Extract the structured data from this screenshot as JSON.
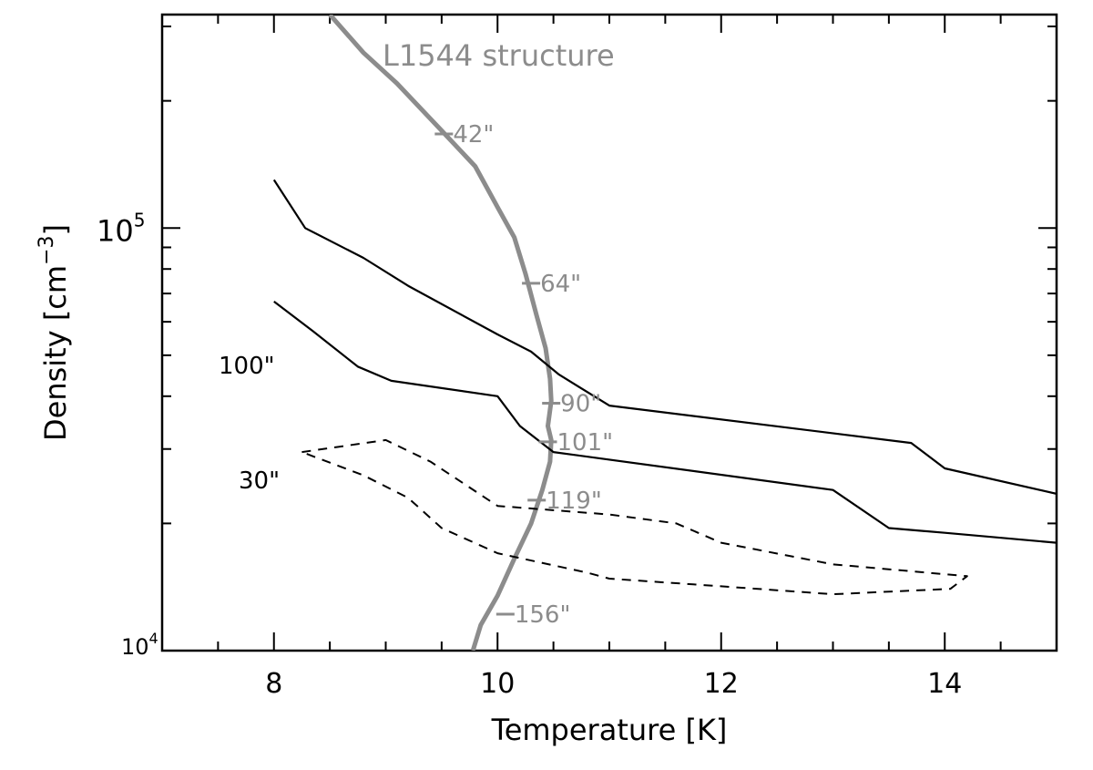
{
  "chart_data": {
    "type": "line",
    "title": "L1544 structure",
    "xlabel": "Temperature [K]",
    "ylabel_main": "Density",
    "ylabel_unit_base": "[cm",
    "ylabel_unit_exp": "−3",
    "ylabel_unit_close": "]",
    "xlim": [
      7,
      15
    ],
    "ylim": [
      10000,
      320000
    ],
    "yscale": "log",
    "xticks": [
      8,
      10,
      12,
      14
    ],
    "xtick_labels": [
      "8",
      "10",
      "12",
      "14"
    ],
    "ytick_labels": [
      {
        "value": 100000,
        "base": "10",
        "exp": "5"
      },
      {
        "value": 10000,
        "base": "10",
        "exp": "4"
      }
    ],
    "colors": {
      "structure": "#8c8c8c",
      "contours": "#000000"
    },
    "series": [
      {
        "style": "gray-thick",
        "points": [
          [
            8.5,
            320000
          ],
          [
            8.8,
            260000
          ],
          [
            9.1,
            220000
          ],
          [
            9.5,
            170000
          ],
          [
            9.8,
            140000
          ],
          [
            10.0,
            112000
          ],
          [
            10.15,
            95000
          ],
          [
            10.25,
            78000
          ],
          [
            10.35,
            62000
          ],
          [
            10.43,
            52000
          ],
          [
            10.47,
            44000
          ],
          [
            10.48,
            39000
          ],
          [
            10.45,
            34000
          ],
          [
            10.48,
            31500
          ],
          [
            10.47,
            28000
          ],
          [
            10.4,
            24000
          ],
          [
            10.3,
            20000
          ],
          [
            10.15,
            16500
          ],
          [
            10.0,
            13500
          ],
          [
            9.85,
            11500
          ],
          [
            9.78,
            10000
          ]
        ]
      },
      {
        "style": "solid",
        "label": "100\"",
        "points": [
          [
            8.0,
            130000
          ],
          [
            8.28,
            100000
          ],
          [
            8.8,
            85000
          ],
          [
            9.2,
            73000
          ],
          [
            10.0,
            56000
          ],
          [
            10.3,
            51000
          ],
          [
            10.55,
            45000
          ],
          [
            11.0,
            38000
          ],
          [
            13.7,
            31000
          ],
          [
            14.0,
            27000
          ],
          [
            15.0,
            23500
          ]
        ]
      },
      {
        "style": "solid",
        "points": [
          [
            8.0,
            67000
          ],
          [
            8.35,
            57000
          ],
          [
            8.75,
            47000
          ],
          [
            9.05,
            43500
          ],
          [
            10.0,
            40000
          ],
          [
            10.2,
            34000
          ],
          [
            10.5,
            29500
          ],
          [
            13.0,
            24000
          ],
          [
            13.5,
            19500
          ],
          [
            14.0,
            19000
          ],
          [
            15.0,
            18000
          ]
        ]
      },
      {
        "style": "dashed",
        "label": "30\"",
        "points": [
          [
            8.25,
            29500
          ],
          [
            9.0,
            31500
          ],
          [
            9.4,
            28000
          ],
          [
            10.0,
            22000
          ],
          [
            11.0,
            21000
          ],
          [
            11.6,
            20000
          ],
          [
            12.0,
            18000
          ],
          [
            13.0,
            16000
          ],
          [
            14.2,
            15000
          ],
          [
            14.05,
            14000
          ],
          [
            13.0,
            13600
          ],
          [
            12.0,
            14200
          ],
          [
            11.0,
            14800
          ],
          [
            10.8,
            15300
          ],
          [
            10.0,
            17000
          ],
          [
            9.5,
            19500
          ],
          [
            9.2,
            23000
          ],
          [
            8.8,
            26000
          ],
          [
            8.25,
            29500
          ]
        ]
      }
    ],
    "annotations": [
      {
        "text": "42\"",
        "x": 9.52,
        "y": 167000
      },
      {
        "text": "64\"",
        "x": 10.3,
        "y": 74000
      },
      {
        "text": "90\"",
        "x": 10.48,
        "y": 38500
      },
      {
        "text": "101\"",
        "x": 10.45,
        "y": 31200
      },
      {
        "text": "119\"",
        "x": 10.35,
        "y": 22700
      },
      {
        "text": "156\"",
        "x": 10.07,
        "y": 12200
      }
    ],
    "grid": false,
    "legend": "none"
  }
}
